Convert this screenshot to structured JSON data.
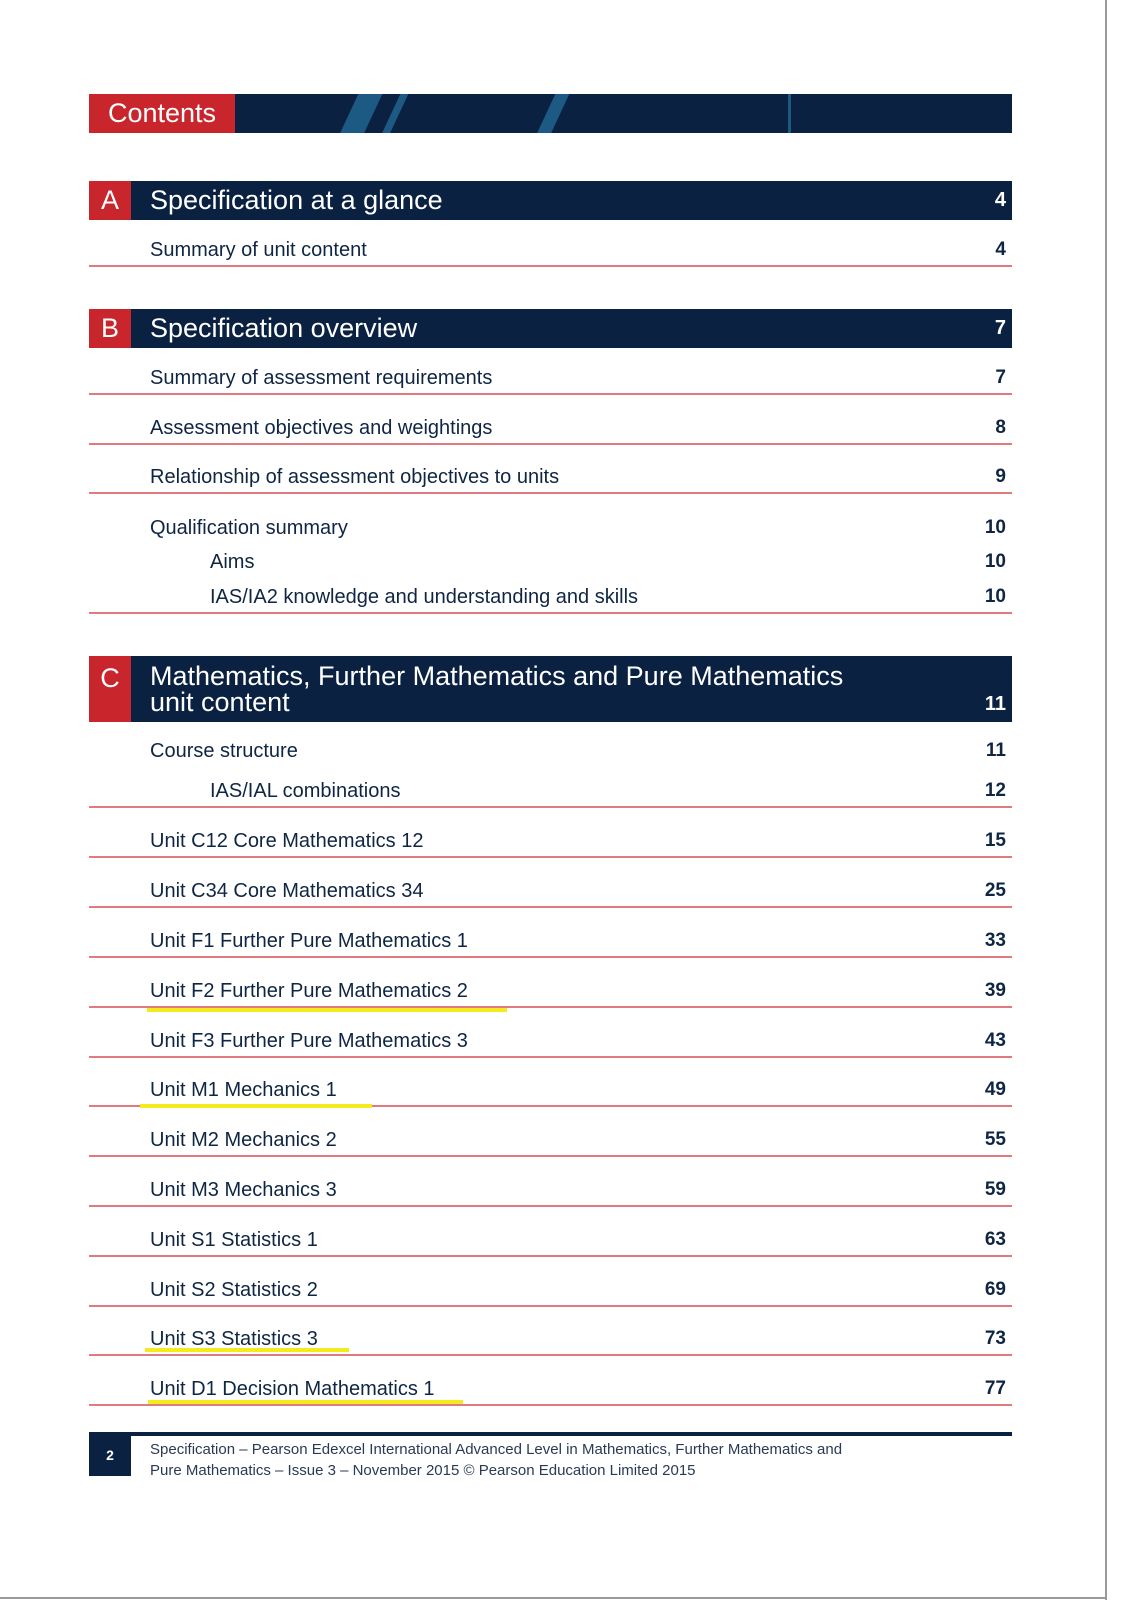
{
  "header": {
    "title": "Contents"
  },
  "sections": [
    {
      "letter": "A",
      "title": "Specification at a glance",
      "page": "4",
      "rows": [
        {
          "label": "Summary of unit content",
          "page": "4"
        }
      ]
    },
    {
      "letter": "B",
      "title": "Specification overview",
      "page": "7",
      "rows": [
        {
          "label": "Summary of assessment requirements",
          "page": "7"
        },
        {
          "label": "Assessment objectives and weightings",
          "page": "8"
        },
        {
          "label": "Relationship of assessment objectives to units",
          "page": "9"
        },
        {
          "label": "Qualification summary",
          "page": "10"
        },
        {
          "label": "Aims",
          "page": "10"
        },
        {
          "label": "IAS/IA2 knowledge and understanding and skills",
          "page": "10"
        }
      ]
    },
    {
      "letter": "C",
      "title_line1": "Mathematics, Further Mathematics and Pure Mathematics",
      "title_line2": "unit content",
      "page": "11",
      "rows": [
        {
          "label": "Course structure",
          "page": "11"
        },
        {
          "label": "IAS/IAL combinations",
          "page": "12"
        },
        {
          "label": "Unit C12 Core Mathematics 12",
          "page": "15"
        },
        {
          "label": "Unit C34 Core Mathematics 34",
          "page": "25"
        },
        {
          "label": "Unit F1 Further Pure Mathematics 1",
          "page": "33"
        },
        {
          "label": "Unit F2 Further Pure Mathematics 2",
          "page": "39",
          "highlighted": true
        },
        {
          "label": "Unit F3 Further Pure Mathematics 3",
          "page": "43"
        },
        {
          "label": "Unit M1 Mechanics 1",
          "page": "49",
          "highlighted": true
        },
        {
          "label": "Unit M2 Mechanics 2",
          "page": "55"
        },
        {
          "label": "Unit M3 Mechanics 3",
          "page": "59"
        },
        {
          "label": "Unit S1 Statistics 1",
          "page": "63"
        },
        {
          "label": "Unit S2 Statistics 2",
          "page": "69"
        },
        {
          "label": "Unit S3 Statistics 3",
          "page": "73",
          "highlighted": true
        },
        {
          "label": "Unit D1 Decision Mathematics 1",
          "page": "77",
          "highlighted": true
        }
      ]
    }
  ],
  "footer": {
    "page_number": "2",
    "line1": "Specification – Pearson Edexcel International Advanced Level in Mathematics, Further Mathematics and",
    "line2": "Pure Mathematics – Issue 3 – November 2015 © Pearson Education Limited 2015"
  },
  "colors": {
    "navy": "#0b2142",
    "red": "#c8252c",
    "rule": "#e07a7f",
    "highlight": "#f5ea1c"
  }
}
